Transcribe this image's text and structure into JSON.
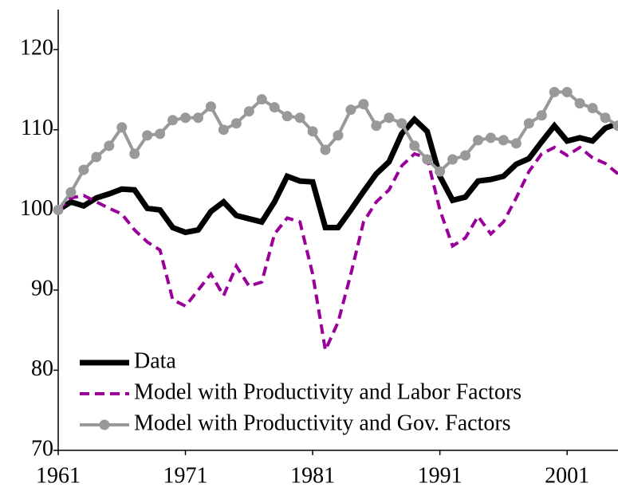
{
  "chart_data": {
    "type": "line",
    "x": [
      1961,
      1962,
      1963,
      1964,
      1965,
      1966,
      1967,
      1968,
      1969,
      1970,
      1971,
      1972,
      1973,
      1974,
      1975,
      1976,
      1977,
      1978,
      1979,
      1980,
      1981,
      1982,
      1983,
      1984,
      1985,
      1986,
      1987,
      1988,
      1989,
      1990,
      1991,
      1992,
      1993,
      1994,
      1995,
      1996,
      1997,
      1998,
      1999,
      2000,
      2001,
      2002,
      2003,
      2004,
      2005
    ],
    "series": [
      {
        "name": "Data",
        "color": "#000000",
        "style": "solid",
        "markers": false,
        "values": [
          100,
          101,
          100.5,
          101.5,
          102,
          102.6,
          102.5,
          100.2,
          100,
          97.8,
          97.2,
          97.5,
          99.8,
          101,
          99.3,
          98.9,
          98.5,
          101,
          104.2,
          103.6,
          103.5,
          97.8,
          97.8,
          100,
          102.3,
          104.5,
          106,
          109.5,
          111.3,
          109.8,
          104.2,
          101.2,
          101.6,
          103.6,
          103.8,
          104.2,
          105.7,
          106.4,
          108.5,
          110.5,
          108.6,
          109,
          108.6,
          110.2,
          110.8
        ]
      },
      {
        "name": "Model with Productivity and Labor Factors",
        "color": "#990099",
        "style": "dashed",
        "markers": false,
        "values": [
          100,
          101.5,
          101.8,
          101,
          100.2,
          99.5,
          97.5,
          96,
          95,
          88.8,
          88,
          90,
          92,
          89.3,
          93,
          90.5,
          91,
          97,
          99,
          98.5,
          92,
          82.5,
          86,
          92,
          98.5,
          101,
          102.5,
          105.5,
          107,
          106.5,
          100,
          95.5,
          96.5,
          99.2,
          97,
          98.5,
          101.5,
          104.8,
          107,
          107.8,
          106.8,
          107.8,
          106.5,
          105.8,
          104.5
        ]
      },
      {
        "name": "Model with Productivity and Gov. Factors",
        "color": "#999999",
        "style": "solid",
        "markers": true,
        "values": [
          100,
          102.2,
          105,
          106.6,
          108,
          110.3,
          107,
          109.3,
          109.5,
          111.2,
          111.5,
          111.5,
          112.9,
          110,
          110.8,
          112.3,
          113.8,
          112.8,
          111.7,
          111.5,
          109.8,
          107.5,
          109.3,
          112.5,
          113.2,
          110.5,
          111.5,
          110.8,
          108,
          106.3,
          104.8,
          106.3,
          106.8,
          108.7,
          109,
          108.7,
          108.3,
          110.8,
          111.8,
          114.7,
          114.7,
          113.3,
          112.7,
          111.5,
          110.5
        ]
      }
    ],
    "xlim": [
      1961,
      2005
    ],
    "xticks": [
      1961,
      1971,
      1981,
      1991,
      2001
    ],
    "ylim": [
      70,
      125
    ],
    "yticks": [
      70,
      80,
      90,
      100,
      110,
      120
    ],
    "grid": false,
    "legend": "lower left"
  }
}
